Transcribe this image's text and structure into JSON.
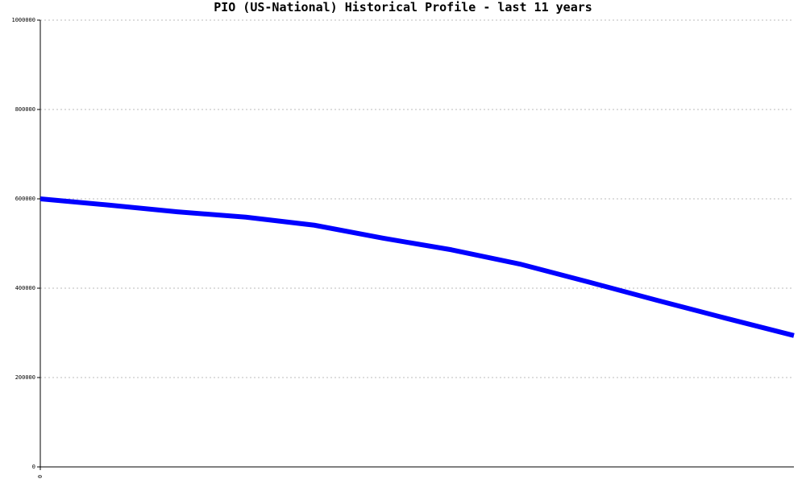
{
  "chart_data": {
    "type": "line",
    "title": "PIO (US-National) Historical Profile - last 11 years",
    "categories": [
      "0",
      null,
      null,
      null,
      null,
      null,
      null,
      null,
      null,
      null,
      null,
      null
    ],
    "series": [
      {
        "name": null,
        "color": "#0000ff",
        "values": [
          600000,
          586000,
          571000,
          559000,
          541000,
          512000,
          486000,
          454000,
          414000,
          373000,
          333000,
          294000
        ]
      }
    ],
    "ylim": [
      0,
      1000000
    ],
    "yticks": [
      0,
      200000,
      400000,
      600000,
      800000,
      1000000
    ],
    "grid": true
  }
}
